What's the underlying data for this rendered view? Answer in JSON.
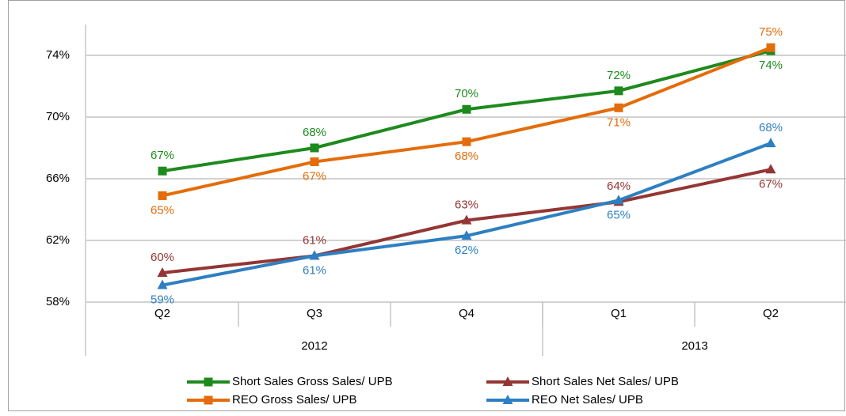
{
  "chart_data": {
    "type": "line",
    "categories": [
      "Q2",
      "Q3",
      "Q4",
      "Q1",
      "Q2"
    ],
    "groups": [
      {
        "label": "2012",
        "count": 3
      },
      {
        "label": "2013",
        "count": 2
      }
    ],
    "ylim": [
      58,
      76
    ],
    "yticks": [
      {
        "value": 58,
        "label": "58%"
      },
      {
        "value": 62,
        "label": "62%"
      },
      {
        "value": 66,
        "label": "66%"
      },
      {
        "value": 70,
        "label": "70%"
      },
      {
        "value": 74,
        "label": "74%"
      }
    ],
    "grid": true,
    "legend": "bottom",
    "series": [
      {
        "name": "Short Sales Gross Sales/ UPB",
        "color": "#1e8a1e",
        "marker": "square",
        "values": [
          66.5,
          68.0,
          70.5,
          71.7,
          74.3
        ],
        "value_labels": [
          "67%",
          "68%",
          "70%",
          "72%",
          "74%"
        ]
      },
      {
        "name": "Short Sales Net Sales/ UPB",
        "color": "#943634",
        "marker": "triangle",
        "values": [
          59.9,
          61.0,
          63.3,
          64.5,
          66.6
        ],
        "value_labels": [
          "60%",
          "61%",
          "63%",
          "64%",
          "67%"
        ]
      },
      {
        "name": "REO Gross Sales/ UPB",
        "color": "#e46c0a",
        "marker": "square",
        "values": [
          64.9,
          67.1,
          68.4,
          70.6,
          74.5
        ],
        "value_labels": [
          "65%",
          "67%",
          "68%",
          "71%",
          "75%"
        ]
      },
      {
        "name": "REO Net Sales/ UPB",
        "color": "#2e7fc1",
        "marker": "triangle",
        "values": [
          59.1,
          61.0,
          62.3,
          64.6,
          68.3
        ],
        "value_labels": [
          "59%",
          "61%",
          "62%",
          "65%",
          "68%"
        ]
      }
    ]
  }
}
